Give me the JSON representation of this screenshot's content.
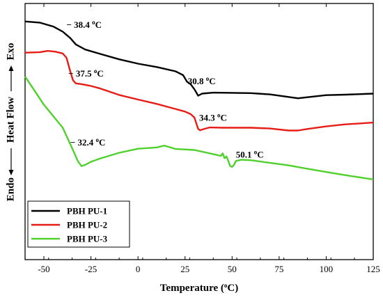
{
  "chart_data": {
    "type": "line",
    "xlabel": "Temperature (°C)",
    "ylabel": "Endo ⟵ Heat Flow ⟶ Exo",
    "ylabel_parts": {
      "left": "Endo",
      "middle": "Heat Flow",
      "right": "Exo"
    },
    "xlabel_parts": {
      "main": "Temperature (",
      "sup": "o",
      "unit": "C)"
    },
    "xlim": [
      -60,
      125
    ],
    "ylim": [
      0,
      100
    ],
    "x_ticks": [
      -50,
      -25,
      0,
      25,
      50,
      75,
      100,
      125
    ],
    "x_tick_labels": [
      "-50",
      "-25",
      "0",
      "25",
      "50",
      "75",
      "100",
      "125"
    ],
    "y_ticks_labeled": false,
    "legend_position": "bottom-left",
    "series": [
      {
        "name": "PBH PU-1",
        "color": "#000000",
        "x": [
          -60,
          -52,
          -45,
          -40,
          -36,
          -33,
          -28,
          -20,
          -10,
          0,
          10,
          20,
          24,
          26,
          28,
          30,
          32,
          34,
          40,
          50,
          60,
          70,
          80,
          85,
          90,
          100,
          110,
          125
        ],
        "y": [
          93,
          92.5,
          91,
          89,
          86.5,
          84,
          82,
          80.3,
          78.2,
          76.5,
          75.2,
          73.5,
          72,
          69.5,
          68.5,
          66.5,
          64,
          64.8,
          65.2,
          65.1,
          65,
          64.5,
          63.5,
          63,
          63.4,
          64.2,
          64.4,
          64.8
        ]
      },
      {
        "name": "PBH PU-2",
        "color": "#e81c16",
        "x": [
          -60,
          -52,
          -48,
          -44,
          -40,
          -38,
          -36,
          -34.5,
          -33,
          -30,
          -25,
          -20,
          -10,
          0,
          10,
          20,
          25,
          28,
          30,
          31,
          32,
          33,
          34,
          38,
          45,
          50,
          60,
          70,
          80,
          85,
          90,
          100,
          110,
          125
        ],
        "y": [
          80.8,
          81,
          81.5,
          81.2,
          80.5,
          78.8,
          73.5,
          70,
          68.8,
          68.5,
          67.8,
          66.8,
          64.3,
          62.5,
          60.8,
          58.8,
          57.8,
          56.8,
          55.5,
          53.2,
          51,
          50.5,
          50.8,
          51.6,
          51.5,
          51.5,
          51.5,
          51.2,
          50.4,
          50.4,
          51,
          52,
          52.8,
          53.5
        ]
      },
      {
        "name": "PBH PU-3",
        "color": "#4fd12c",
        "x": [
          -60,
          -55,
          -50,
          -45,
          -40,
          -35,
          -32,
          -30,
          -28,
          -25,
          -20,
          -10,
          0,
          10,
          14,
          20,
          30,
          40,
          44,
          45,
          46,
          47,
          48,
          49,
          50,
          51,
          52,
          55,
          60,
          70,
          80,
          90,
          100,
          110,
          125
        ],
        "y": [
          71.5,
          66,
          60.5,
          56,
          51.5,
          43.5,
          38.5,
          36.5,
          37,
          38.2,
          39.5,
          41.7,
          43.3,
          43.8,
          44.5,
          43.2,
          42.8,
          41.2,
          40.5,
          41.5,
          39.6,
          40.3,
          38.5,
          36.5,
          36.2,
          37,
          38.5,
          39,
          38.8,
          37.8,
          36.8,
          35.5,
          34.2,
          33,
          31.3
        ]
      }
    ],
    "annotations": [
      {
        "value": "− 38.4",
        "unit_sup": "o",
        "unit": "C",
        "x": -38,
        "y": 90.5
      },
      {
        "value": "− 37.5",
        "unit_sup": "o",
        "unit": "C",
        "x": -37,
        "y": 71.5
      },
      {
        "value": "30.8",
        "unit_sup": "o",
        "unit": "C",
        "x": 26.5,
        "y": 68.5
      },
      {
        "value": "34.3",
        "unit_sup": "o",
        "unit": "C",
        "x": 32.5,
        "y": 54.2
      },
      {
        "value": "− 32.4",
        "unit_sup": "o",
        "unit": "C",
        "x": -36,
        "y": 44.5
      },
      {
        "value": "50.1",
        "unit_sup": "o",
        "unit": "C",
        "x": 52,
        "y": 39.8
      }
    ]
  }
}
